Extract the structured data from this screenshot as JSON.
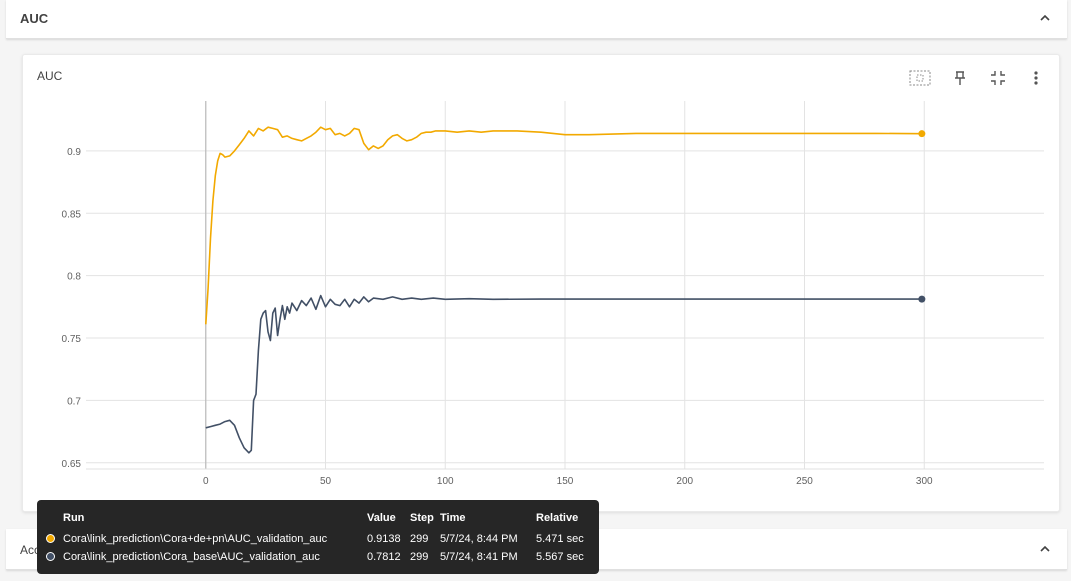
{
  "section_top": {
    "title": "AUC"
  },
  "card": {
    "title": "AUC"
  },
  "section_bottom": {
    "title": "Accuracy"
  },
  "icons": {
    "fit": "fit-domain-icon",
    "pin": "pin-icon",
    "collapse": "fullscreen-exit-icon",
    "more": "more-vert-icon",
    "chevron": "chevron-up-icon"
  },
  "colors": {
    "orange": "#f2a900",
    "slate": "#425066"
  },
  "tooltip": {
    "headers": {
      "run": "Run",
      "value": "Value",
      "step": "Step",
      "time": "Time",
      "relative": "Relative"
    },
    "rows": [
      {
        "run": "Cora\\link_prediction\\Cora+de+pn\\AUC_validation_auc",
        "value": "0.9138",
        "step": "299",
        "time": "5/7/24, 8:44 PM",
        "relative": "5.471 sec"
      },
      {
        "run": "Cora\\link_prediction\\Cora_base\\AUC_validation_auc",
        "value": "0.7812",
        "step": "299",
        "time": "5/7/24, 8:41 PM",
        "relative": "5.567 sec"
      }
    ]
  },
  "chart_data": {
    "type": "line",
    "title": "AUC",
    "xlim": [
      -50,
      350
    ],
    "ylim": [
      0.645,
      0.94
    ],
    "xticks": [
      0,
      50,
      100,
      150,
      200,
      250,
      300
    ],
    "yticks": [
      0.65,
      0.7,
      0.75,
      0.8,
      0.85,
      0.9
    ],
    "ytick_labels": [
      "0.65",
      "0.7",
      "0.75",
      "0.8",
      "0.85",
      "0.9"
    ],
    "grid": true,
    "series": [
      {
        "name": "Cora\\link_prediction\\Cora+de+pn\\AUC_validation_auc",
        "color": "#f2a900",
        "x": [
          0,
          1,
          2,
          3,
          4,
          5,
          6,
          7,
          8,
          10,
          12,
          14,
          16,
          18,
          20,
          22,
          24,
          26,
          28,
          30,
          32,
          34,
          36,
          38,
          40,
          42,
          44,
          46,
          48,
          50,
          52,
          54,
          56,
          58,
          60,
          62,
          64,
          66,
          68,
          70,
          72,
          74,
          76,
          78,
          80,
          82,
          84,
          86,
          88,
          90,
          92,
          94,
          96,
          100,
          105,
          110,
          115,
          120,
          130,
          140,
          150,
          160,
          180,
          200,
          220,
          250,
          280,
          299
        ],
        "y": [
          0.761,
          0.79,
          0.83,
          0.86,
          0.88,
          0.892,
          0.898,
          0.897,
          0.895,
          0.896,
          0.9,
          0.905,
          0.91,
          0.916,
          0.912,
          0.918,
          0.916,
          0.919,
          0.918,
          0.917,
          0.911,
          0.912,
          0.91,
          0.909,
          0.908,
          0.91,
          0.912,
          0.915,
          0.919,
          0.917,
          0.918,
          0.913,
          0.914,
          0.912,
          0.914,
          0.918,
          0.917,
          0.906,
          0.901,
          0.904,
          0.902,
          0.904,
          0.909,
          0.912,
          0.913,
          0.91,
          0.908,
          0.909,
          0.911,
          0.914,
          0.915,
          0.915,
          0.916,
          0.916,
          0.915,
          0.916,
          0.915,
          0.916,
          0.916,
          0.915,
          0.913,
          0.913,
          0.914,
          0.914,
          0.914,
          0.914,
          0.914,
          0.9138
        ]
      },
      {
        "name": "Cora\\link_prediction\\Cora_base\\AUC_validation_auc",
        "color": "#425066",
        "x": [
          0,
          2,
          4,
          6,
          8,
          10,
          12,
          14,
          16,
          18,
          19,
          20,
          21,
          22,
          23,
          24,
          25,
          26,
          27,
          28,
          29,
          30,
          31,
          32,
          33,
          34,
          35,
          36,
          38,
          40,
          42,
          44,
          46,
          48,
          50,
          52,
          54,
          56,
          58,
          60,
          62,
          64,
          66,
          68,
          70,
          74,
          78,
          82,
          86,
          90,
          95,
          100,
          110,
          120,
          140,
          160,
          200,
          250,
          299
        ],
        "y": [
          0.678,
          0.679,
          0.68,
          0.681,
          0.683,
          0.684,
          0.68,
          0.67,
          0.662,
          0.658,
          0.66,
          0.7,
          0.705,
          0.74,
          0.765,
          0.77,
          0.772,
          0.755,
          0.748,
          0.77,
          0.774,
          0.752,
          0.765,
          0.776,
          0.765,
          0.775,
          0.77,
          0.778,
          0.772,
          0.78,
          0.776,
          0.782,
          0.773,
          0.784,
          0.775,
          0.781,
          0.777,
          0.776,
          0.781,
          0.775,
          0.781,
          0.778,
          0.783,
          0.779,
          0.782,
          0.781,
          0.783,
          0.781,
          0.782,
          0.781,
          0.782,
          0.781,
          0.7815,
          0.781,
          0.7812,
          0.7812,
          0.7812,
          0.7812,
          0.7812
        ]
      }
    ]
  }
}
